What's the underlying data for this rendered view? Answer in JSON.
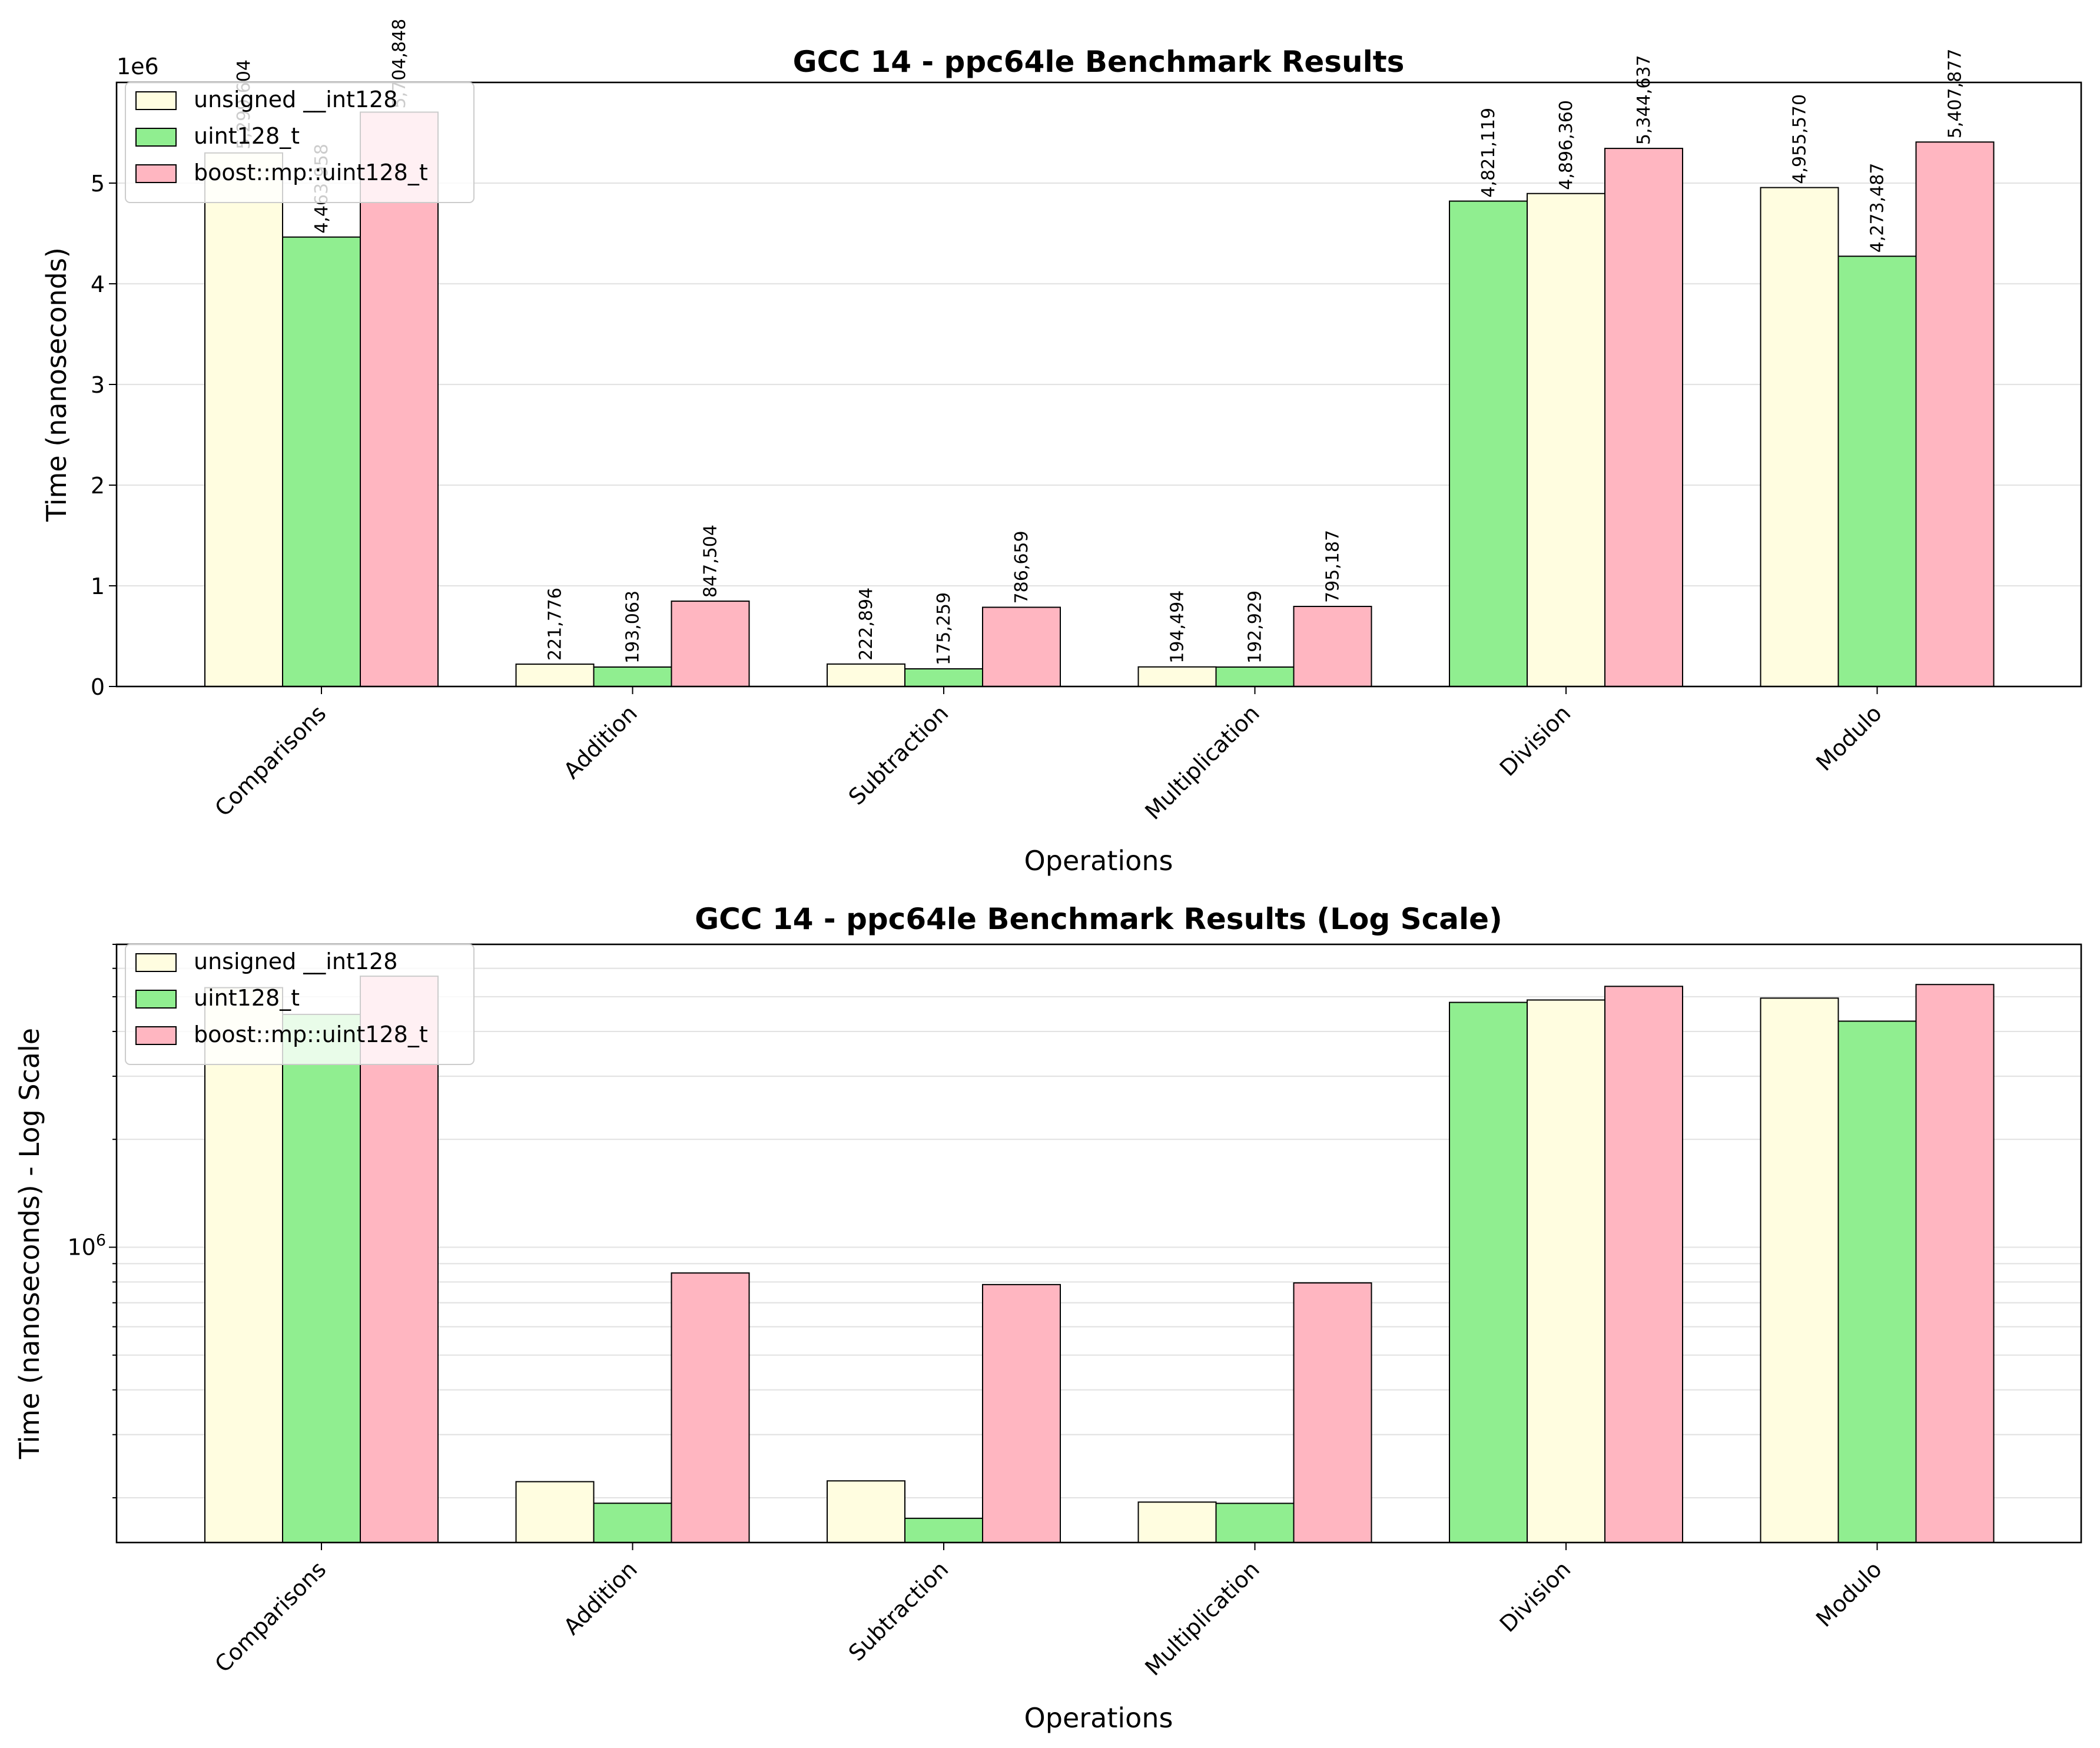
{
  "figure": {
    "panels": [
      {
        "title": "GCC 14 - ppc64le Benchmark Results",
        "xlabel": "Operations",
        "ylabel": "Time (nanoseconds)",
        "offset_text": "1e6"
      },
      {
        "title": "GCC 14 - ppc64le Benchmark Results (Log Scale)",
        "xlabel": "Operations",
        "ylabel": "Time (nanoseconds) - Log Scale",
        "log_tick_label": "10^6"
      }
    ]
  },
  "colors": {
    "unsigned_int128": "#fffde0",
    "uint128_t": "#90ee90",
    "boost_uint128_t": "#ffb6c1",
    "edge": "#000000",
    "grid": "#e3e3e3"
  },
  "chart_data": [
    {
      "type": "bar",
      "title": "GCC 14 - ppc64le Benchmark Results",
      "xlabel": "Operations",
      "ylabel": "Time (nanoseconds)",
      "y_scale": "linear",
      "y_ticks": [
        0,
        1000000,
        2000000,
        3000000,
        4000000,
        5000000
      ],
      "y_tick_labels": [
        "0",
        "1",
        "2",
        "3",
        "4",
        "5"
      ],
      "y_offset_label": "1e6",
      "ylim": [
        0,
        6000000
      ],
      "grid": "y-major",
      "legend_position": "upper-left",
      "categories": [
        "Comparisons",
        "Addition",
        "Subtraction",
        "Multiplication",
        "Division",
        "Modulo"
      ],
      "series": [
        {
          "name": "unsigned __int128",
          "color_key": "unsigned_int128",
          "values": [
            5299604,
            221776,
            222894,
            194494,
            4896360,
            4955570
          ],
          "value_labels": [
            "5,299,604",
            "221,776",
            "222,894",
            "194,494",
            "4,896,360",
            "4,955,570"
          ]
        },
        {
          "name": "uint128_t",
          "color_key": "uint128_t",
          "values": [
            4463958,
            193063,
            175259,
            192929,
            4821119,
            4273487
          ],
          "value_labels": [
            "4,463,958",
            "193,063",
            "175,259",
            "192,929",
            "4,821,119",
            "4,273,487"
          ]
        },
        {
          "name": "boost::mp::uint128_t",
          "color_key": "boost_uint128_t",
          "values": [
            5704848,
            847504,
            786659,
            795187,
            5344637,
            5407877
          ],
          "value_labels": [
            "5,704,848",
            "847,504",
            "786,659",
            "795,187",
            "5,344,637",
            "5,407,877"
          ]
        }
      ],
      "bar_order_per_category": [
        [
          0,
          1,
          2
        ],
        [
          0,
          1,
          2
        ],
        [
          0,
          1,
          2
        ],
        [
          0,
          1,
          2
        ],
        [
          1,
          0,
          2
        ],
        [
          0,
          1,
          2
        ]
      ]
    },
    {
      "type": "bar",
      "title": "GCC 14 - ppc64le Benchmark Results (Log Scale)",
      "xlabel": "Operations",
      "ylabel": "Time (nanoseconds) - Log Scale",
      "y_scale": "log",
      "ylim": [
        150000,
        7000000
      ],
      "major_ticks": [
        1000000
      ],
      "grid": "y-major-and-minor",
      "legend_position": "upper-left",
      "categories": [
        "Comparisons",
        "Addition",
        "Subtraction",
        "Multiplication",
        "Division",
        "Modulo"
      ],
      "series": [
        {
          "name": "unsigned __int128",
          "color_key": "unsigned_int128",
          "values": [
            5299604,
            221776,
            222894,
            194494,
            4896360,
            4955570
          ]
        },
        {
          "name": "uint128_t",
          "color_key": "uint128_t",
          "values": [
            4463958,
            193063,
            175259,
            192929,
            4821119,
            4273487
          ]
        },
        {
          "name": "boost::mp::uint128_t",
          "color_key": "boost_uint128_t",
          "values": [
            5704848,
            847504,
            786659,
            795187,
            5344637,
            5407877
          ]
        }
      ],
      "bar_order_per_category": [
        [
          0,
          1,
          2
        ],
        [
          0,
          1,
          2
        ],
        [
          0,
          1,
          2
        ],
        [
          0,
          1,
          2
        ],
        [
          1,
          0,
          2
        ],
        [
          0,
          1,
          2
        ]
      ]
    }
  ]
}
